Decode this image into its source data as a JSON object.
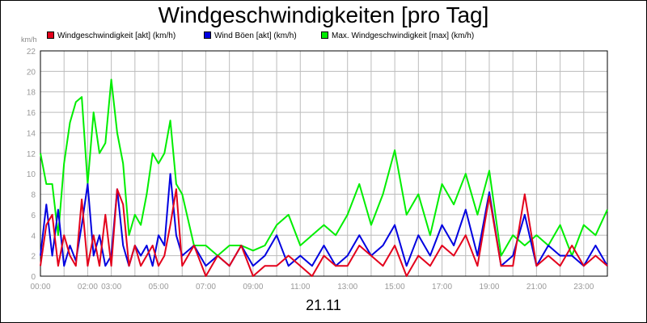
{
  "title": "Windgeschwindigkeiten [pro Tag]",
  "date_label": "21.11",
  "unit_label": "km/h",
  "colors": {
    "wind": "#e3001b",
    "gust": "#0000e0",
    "max": "#00ee00",
    "grid": "#bcbcbc",
    "tick": "#999999"
  },
  "legend": [
    {
      "label": "Windgeschwindigkeit [akt] (km/h)",
      "color": "#e3001b"
    },
    {
      "label": "Wind Böen [akt] (km/h)",
      "color": "#0000e0"
    },
    {
      "label": "Max. Windgeschwindigkeit [max] (km/h)",
      "color": "#00ee00"
    }
  ],
  "chart_data": {
    "type": "line",
    "title": "Windgeschwindigkeiten [pro Tag]",
    "xlabel": "21.11",
    "ylabel": "km/h",
    "ylim": [
      0,
      22
    ],
    "xlim": [
      "00:00",
      "24:00"
    ],
    "yticks": [
      0,
      2,
      4,
      6,
      8,
      10,
      12,
      14,
      16,
      18,
      20,
      22
    ],
    "xticks": [
      "00:00",
      "02:00",
      "03:00",
      "05:00",
      "07:00",
      "09:00",
      "11:00",
      "13:00",
      "15:00",
      "17:00",
      "19:00",
      "21:00",
      "23:00"
    ],
    "grid": true,
    "legend_position": "top",
    "series": [
      {
        "name": "Windgeschwindigkeit [akt] (km/h)",
        "color": "#e3001b",
        "x": [
          "00:00",
          "00:15",
          "00:30",
          "00:45",
          "01:00",
          "01:15",
          "01:30",
          "01:45",
          "02:00",
          "02:15",
          "02:30",
          "02:45",
          "03:00",
          "03:15",
          "03:30",
          "03:45",
          "04:00",
          "04:15",
          "04:30",
          "04:45",
          "05:00",
          "05:15",
          "05:30",
          "05:45",
          "06:00",
          "06:30",
          "07:00",
          "07:30",
          "08:00",
          "08:30",
          "09:00",
          "09:30",
          "10:00",
          "10:30",
          "11:00",
          "11:30",
          "12:00",
          "12:30",
          "13:00",
          "13:30",
          "14:00",
          "14:30",
          "15:00",
          "15:30",
          "16:00",
          "16:30",
          "17:00",
          "17:30",
          "18:00",
          "18:30",
          "19:00",
          "19:30",
          "20:00",
          "20:30",
          "21:00",
          "21:30",
          "22:00",
          "22:30",
          "23:00",
          "23:30",
          "24:00"
        ],
        "values": [
          1,
          5,
          6,
          1,
          4,
          2,
          1,
          7.5,
          1,
          4,
          1,
          6,
          1,
          8.5,
          7,
          1,
          3,
          1,
          2,
          3,
          1,
          2,
          5,
          8.5,
          1,
          3,
          0,
          2,
          1,
          3,
          0,
          1,
          1,
          2,
          1,
          0,
          2,
          1,
          1,
          3,
          2,
          1,
          3,
          0,
          2,
          1,
          3,
          2,
          4,
          1,
          7.8,
          1,
          1,
          8,
          1,
          2,
          1,
          3,
          1,
          2,
          1
        ]
      },
      {
        "name": "Wind Böen [akt] (km/h)",
        "color": "#0000e0",
        "x": [
          "00:00",
          "00:15",
          "00:30",
          "00:45",
          "01:00",
          "01:15",
          "01:30",
          "01:45",
          "02:00",
          "02:15",
          "02:30",
          "02:45",
          "03:00",
          "03:15",
          "03:30",
          "03:45",
          "04:00",
          "04:15",
          "04:30",
          "04:45",
          "05:00",
          "05:15",
          "05:30",
          "05:45",
          "06:00",
          "06:30",
          "07:00",
          "07:30",
          "08:00",
          "08:30",
          "09:00",
          "09:30",
          "10:00",
          "10:30",
          "11:00",
          "11:30",
          "12:00",
          "12:30",
          "13:00",
          "13:30",
          "14:00",
          "14:30",
          "15:00",
          "15:30",
          "16:00",
          "16:30",
          "17:00",
          "17:30",
          "18:00",
          "18:30",
          "19:00",
          "19:30",
          "20:00",
          "20:30",
          "21:00",
          "21:30",
          "22:00",
          "22:30",
          "23:00",
          "23:30",
          "24:00"
        ],
        "values": [
          2,
          7,
          2,
          6.5,
          1,
          3,
          1.5,
          5,
          9,
          2,
          4,
          1,
          2,
          8.5,
          3,
          1,
          3,
          2,
          3,
          1,
          4,
          3,
          10,
          4,
          2,
          3,
          1,
          2,
          1,
          3,
          1,
          2,
          4,
          1,
          2,
          1,
          3,
          1,
          2,
          4,
          2,
          3,
          5,
          1,
          4,
          2,
          5,
          3,
          6.5,
          2,
          8.2,
          1,
          2,
          6,
          1,
          3,
          2,
          2,
          1,
          3,
          1
        ]
      },
      {
        "name": "Max. Windgeschwindigkeit [max] (km/h)",
        "color": "#00ee00",
        "x": [
          "00:00",
          "00:15",
          "00:30",
          "00:45",
          "01:00",
          "01:15",
          "01:30",
          "01:45",
          "02:00",
          "02:15",
          "02:30",
          "02:45",
          "03:00",
          "03:15",
          "03:30",
          "03:45",
          "04:00",
          "04:15",
          "04:30",
          "04:45",
          "05:00",
          "05:15",
          "05:30",
          "05:45",
          "06:00",
          "06:30",
          "07:00",
          "07:30",
          "08:00",
          "08:30",
          "09:00",
          "09:30",
          "10:00",
          "10:30",
          "11:00",
          "11:30",
          "12:00",
          "12:30",
          "13:00",
          "13:30",
          "14:00",
          "14:30",
          "15:00",
          "15:30",
          "16:00",
          "16:30",
          "17:00",
          "17:30",
          "18:00",
          "18:30",
          "19:00",
          "19:30",
          "20:00",
          "20:30",
          "21:00",
          "21:30",
          "22:00",
          "22:30",
          "23:00",
          "23:30",
          "24:00"
        ],
        "values": [
          12,
          9,
          9,
          4,
          11,
          15,
          17,
          17.5,
          9,
          16,
          12,
          13,
          19.2,
          14,
          11,
          4,
          6,
          5,
          8,
          12,
          11,
          12,
          15.2,
          9,
          8,
          3,
          3,
          2,
          3,
          3,
          2.5,
          3,
          5,
          6,
          3,
          4,
          5,
          4,
          6,
          9,
          5,
          8,
          12.3,
          6,
          8,
          4,
          9,
          7,
          10,
          6,
          10.3,
          2,
          4,
          3,
          4,
          3,
          5,
          2,
          5,
          4,
          6.5
        ]
      }
    ]
  }
}
